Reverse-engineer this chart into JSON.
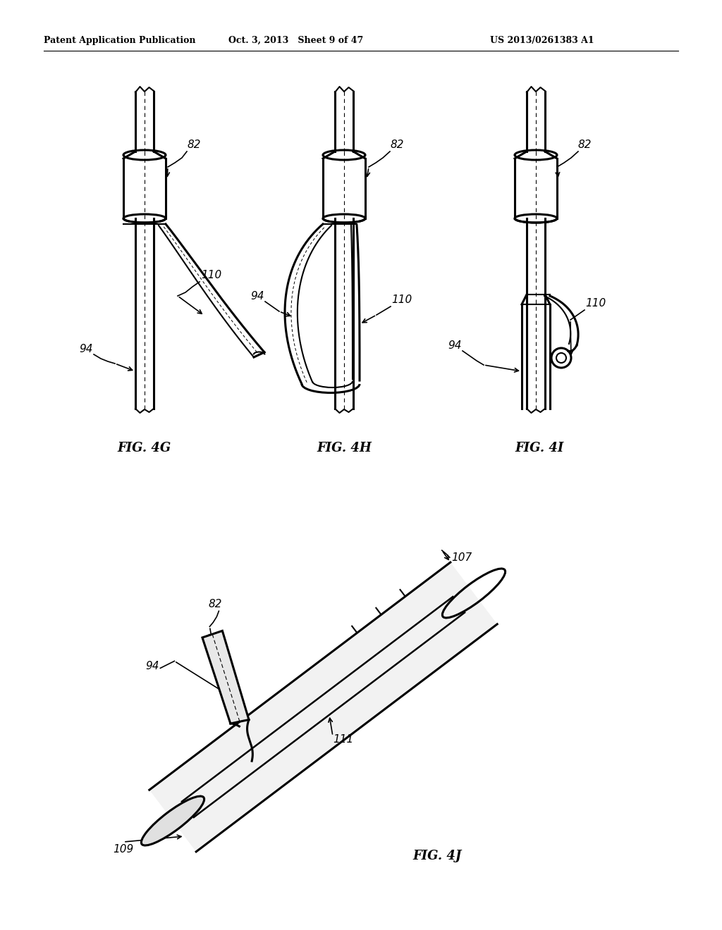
{
  "background_color": "#ffffff",
  "header_left": "Patent Application Publication",
  "header_mid": "Oct. 3, 2013   Sheet 9 of 47",
  "header_right": "US 2013/0261383 A1",
  "fig4g_label": "FIG. 4G",
  "fig4h_label": "FIG. 4H",
  "fig4i_label": "FIG. 4I",
  "fig4j_label": "FIG. 4J",
  "label_82": "82",
  "label_94": "94",
  "label_110": "110",
  "label_107": "107",
  "label_111": "111",
  "label_109": "109"
}
